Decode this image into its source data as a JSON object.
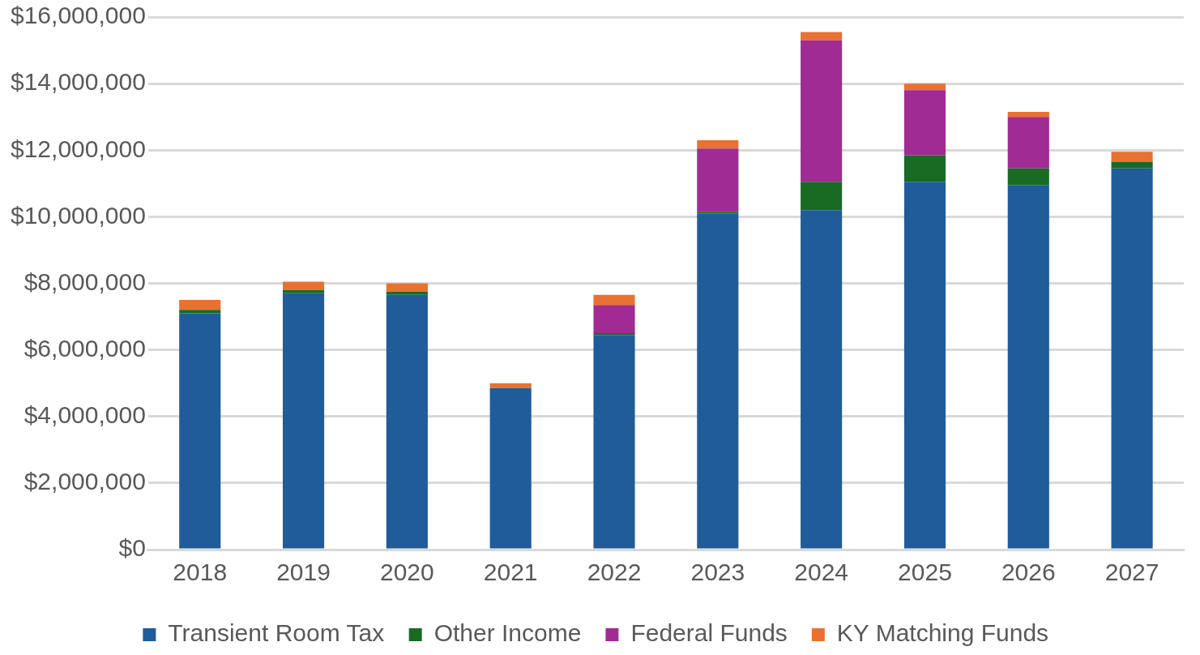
{
  "chart_data": {
    "type": "bar",
    "stacked": true,
    "categories": [
      "2018",
      "2019",
      "2020",
      "2021",
      "2022",
      "2023",
      "2024",
      "2025",
      "2026",
      "2027"
    ],
    "series": [
      {
        "name": "Transient Room Tax",
        "color": "#1f5c99",
        "values": [
          7100000,
          7700000,
          7650000,
          4850000,
          6450000,
          10100000,
          10200000,
          11050000,
          10950000,
          11450000
        ]
      },
      {
        "name": "Other Income",
        "color": "#196b24",
        "values": [
          100000,
          100000,
          100000,
          0,
          50000,
          50000,
          850000,
          800000,
          500000,
          200000
        ]
      },
      {
        "name": "Federal Funds",
        "color": "#a02b93",
        "values": [
          0,
          0,
          0,
          0,
          850000,
          1900000,
          4250000,
          1950000,
          1550000,
          0
        ]
      },
      {
        "name": "KY Matching Funds",
        "color": "#e97132",
        "values": [
          300000,
          250000,
          250000,
          150000,
          300000,
          250000,
          250000,
          200000,
          150000,
          300000
        ]
      }
    ],
    "ylim": [
      0,
      16000000
    ],
    "yticks": [
      {
        "value": 0,
        "label": "$0"
      },
      {
        "value": 2000000,
        "label": "$2,000,000"
      },
      {
        "value": 4000000,
        "label": "$4,000,000"
      },
      {
        "value": 6000000,
        "label": "$6,000,000"
      },
      {
        "value": 8000000,
        "label": "$8,000,000"
      },
      {
        "value": 10000000,
        "label": "$10,000,000"
      },
      {
        "value": 12000000,
        "label": "$12,000,000"
      },
      {
        "value": 14000000,
        "label": "$14,000,000"
      },
      {
        "value": 16000000,
        "label": "$16,000,000"
      }
    ],
    "grid": "y",
    "legend": "bottom"
  }
}
